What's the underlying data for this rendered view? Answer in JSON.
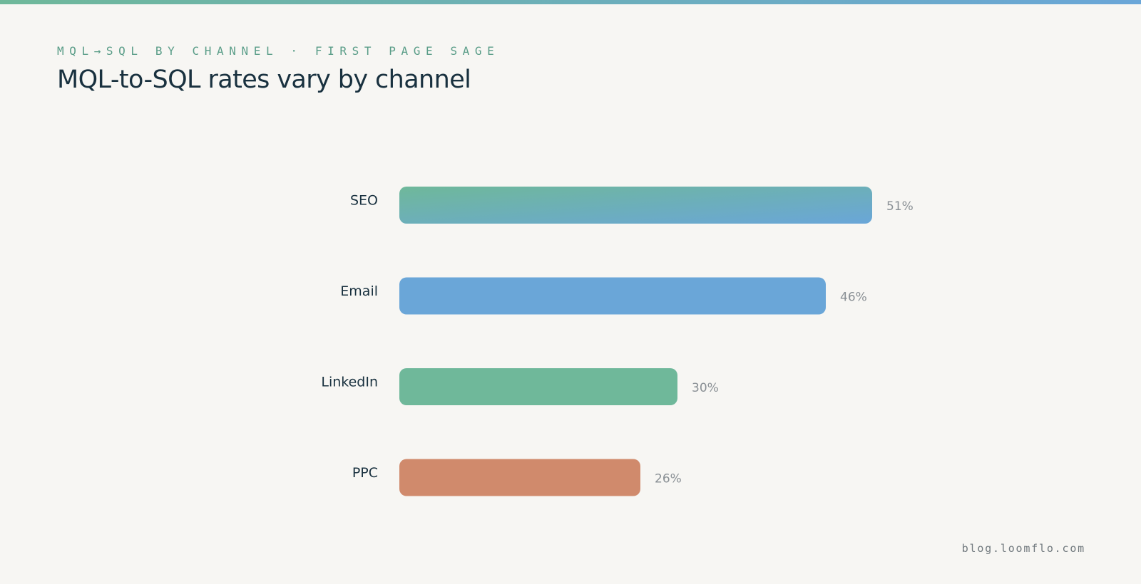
{
  "header": {
    "eyebrow": "MQL→SQL BY CHANNEL · FIRST PAGE SAGE",
    "title": "MQL-to-SQL rates vary by channel"
  },
  "footer": {
    "site": "blog.loomflo.com"
  },
  "colors": {
    "accent_green": "#6fb89a",
    "accent_blue": "#6aa6d8",
    "accent_orange": "#d08a6c",
    "text_dark": "#19313f",
    "text_muted": "#8a9095"
  },
  "chart_data": {
    "type": "bar",
    "orientation": "horizontal",
    "categories": [
      "SEO",
      "Email",
      "LinkedIn",
      "PPC"
    ],
    "values": [
      51,
      46,
      30,
      26
    ],
    "value_labels": [
      "51%",
      "46%",
      "30%",
      "26%"
    ],
    "bar_colors": [
      "gradient:#6fb89a-#6aa6d8",
      "#6aa6d8",
      "#6fb89a",
      "#d08a6c"
    ],
    "unit": "%",
    "xlim": [
      0,
      51
    ],
    "grid": false,
    "legend": "none",
    "title": "MQL-to-SQL rates vary by channel",
    "xlabel": "",
    "ylabel": ""
  }
}
